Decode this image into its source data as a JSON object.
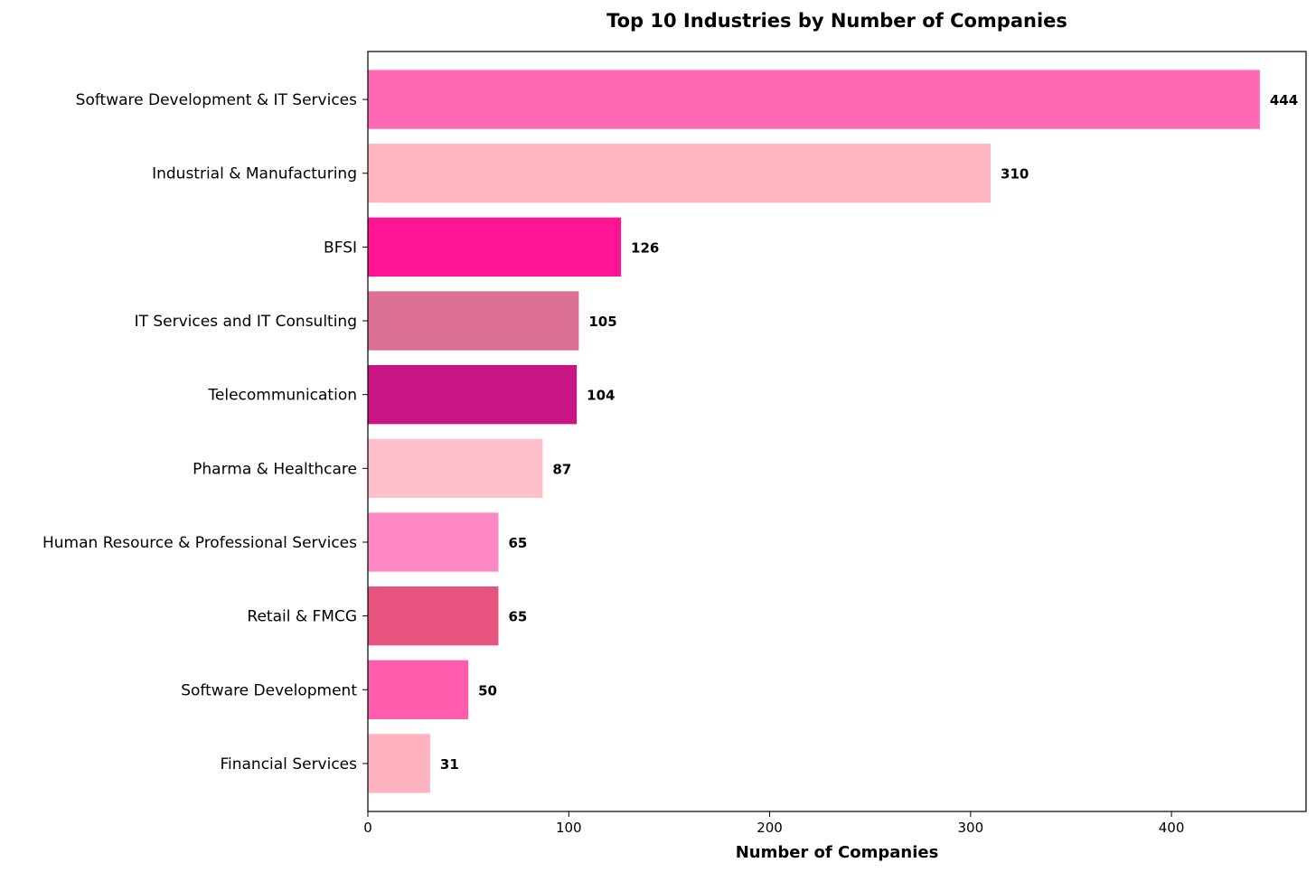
{
  "chart_data": {
    "type": "bar",
    "orientation": "horizontal",
    "title": "Top 10 Industries by Number of Companies",
    "xlabel": "Number of Companies",
    "ylabel": "",
    "xlim": [
      0,
      467
    ],
    "xticks": [
      0,
      100,
      200,
      300,
      400
    ],
    "categories": [
      "Software Development & IT Services",
      "Industrial & Manufacturing",
      "BFSI",
      "IT Services and IT Consulting",
      "Telecommunication",
      "Pharma & Healthcare",
      "Human Resource & Professional Services",
      "Retail & FMCG",
      "Software Development",
      "Financial Services"
    ],
    "values": [
      444,
      310,
      126,
      105,
      104,
      87,
      65,
      65,
      50,
      31
    ],
    "colors": [
      "#ff69b4",
      "#ffb6c1",
      "#ff1493",
      "#db7093",
      "#c71585",
      "#ffc0cb",
      "#ff88c2",
      "#e75480",
      "#ff5cad",
      "#ffb3c1"
    ],
    "value_labels": [
      "444",
      "310",
      "126",
      "105",
      "104",
      "87",
      "65",
      "65",
      "50",
      "31"
    ],
    "grid": false,
    "legend": "none"
  }
}
